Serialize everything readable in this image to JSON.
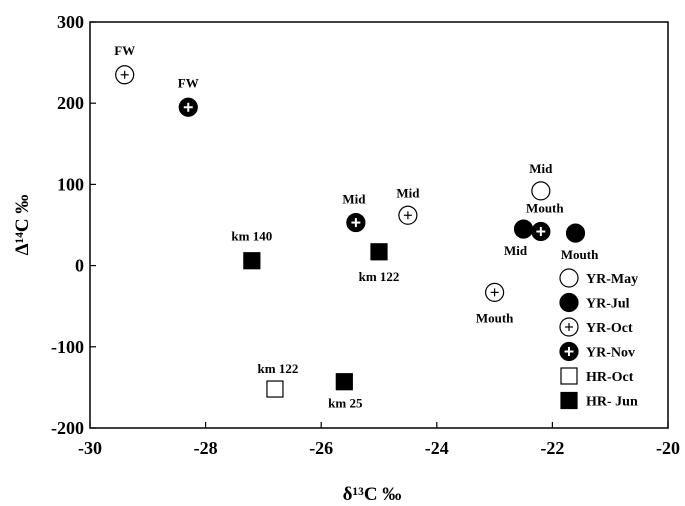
{
  "chart_data": {
    "type": "scatter",
    "title": "",
    "xlabel": "δ¹³C ‰",
    "ylabel": "Δ¹⁴C ‰",
    "xlim": [
      -30,
      -20
    ],
    "ylim": [
      -200,
      300
    ],
    "xticks": [
      -30,
      -28,
      -26,
      -24,
      -22,
      -20
    ],
    "yticks": [
      -200,
      -100,
      0,
      100,
      200,
      300
    ],
    "xtick_labels": [
      "-30",
      "-28",
      "-26",
      "-24",
      "-22",
      "-20"
    ],
    "ytick_labels": [
      "-200",
      "-100",
      "0",
      "100",
      "200",
      "300"
    ],
    "legend_position": "bottom-right",
    "grid": false,
    "series": [
      {
        "name": "YR-May",
        "marker": "circle-open",
        "points": [
          {
            "x": -22.2,
            "y": 92,
            "label": "Mid"
          }
        ]
      },
      {
        "name": "YR-Jul",
        "marker": "circle-filled",
        "points": [
          {
            "x": -22.5,
            "y": 45,
            "label": "Mid"
          },
          {
            "x": -21.6,
            "y": 40,
            "label": "Mouth"
          }
        ]
      },
      {
        "name": "YR-Oct",
        "marker": "circle-open-plus",
        "points": [
          {
            "x": -29.4,
            "y": 235,
            "label": "FW"
          },
          {
            "x": -24.5,
            "y": 62,
            "label": "Mid"
          },
          {
            "x": -23.0,
            "y": -33,
            "label": "Mouth"
          }
        ]
      },
      {
        "name": "YR-Nov",
        "marker": "circle-filled-plus",
        "points": [
          {
            "x": -28.3,
            "y": 195,
            "label": "FW"
          },
          {
            "x": -25.4,
            "y": 53,
            "label": "Mid"
          },
          {
            "x": -22.2,
            "y": 42,
            "label": "Mouth"
          }
        ]
      },
      {
        "name": "HR-Oct",
        "marker": "square-open",
        "points": [
          {
            "x": -26.8,
            "y": -152,
            "label": "km 122"
          }
        ]
      },
      {
        "name": "HR- Jun",
        "marker": "square-filled",
        "points": [
          {
            "x": -27.2,
            "y": 6,
            "label": "km 140"
          },
          {
            "x": -25.0,
            "y": 17,
            "label": "km 122"
          },
          {
            "x": -25.6,
            "y": -143,
            "label": "km 25"
          }
        ]
      }
    ]
  }
}
